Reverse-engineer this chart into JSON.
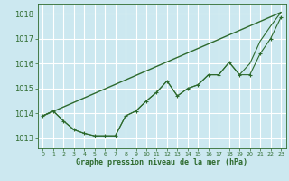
{
  "background_color": "#cce8f0",
  "grid_color": "#ffffff",
  "line_color": "#2d6a2d",
  "text_color": "#2d6a2d",
  "xlabel": "Graphe pression niveau de la mer (hPa)",
  "x_ticks": [
    0,
    1,
    2,
    3,
    4,
    5,
    6,
    7,
    8,
    9,
    10,
    11,
    12,
    13,
    14,
    15,
    16,
    17,
    18,
    19,
    20,
    21,
    22,
    23
  ],
  "ylim": [
    1012.6,
    1018.4
  ],
  "yticks": [
    1013,
    1014,
    1015,
    1016,
    1017,
    1018
  ],
  "xlim": [
    -0.5,
    23.5
  ],
  "series_marker": {
    "x": [
      0,
      1,
      2,
      3,
      4,
      5,
      6,
      7,
      8,
      9,
      10,
      11,
      12,
      13,
      14,
      15,
      16,
      17,
      18,
      19,
      20,
      21,
      22,
      23
    ],
    "y": [
      1013.9,
      1014.1,
      1013.7,
      1013.35,
      1013.2,
      1013.1,
      1013.1,
      1013.1,
      1013.9,
      1014.1,
      1014.5,
      1014.85,
      1015.3,
      1014.7,
      1015.0,
      1015.15,
      1015.55,
      1015.55,
      1016.05,
      1015.55,
      1015.55,
      1016.4,
      1017.0,
      1017.85
    ]
  },
  "series_line": {
    "x": [
      0,
      1,
      2,
      3,
      4,
      5,
      6,
      7,
      8,
      9,
      10,
      11,
      12,
      13,
      14,
      15,
      16,
      17,
      18,
      19,
      20,
      21,
      22,
      23
    ],
    "y": [
      1013.9,
      1014.1,
      1013.7,
      1013.35,
      1013.2,
      1013.1,
      1013.1,
      1013.1,
      1013.9,
      1014.1,
      1014.5,
      1014.85,
      1015.3,
      1014.7,
      1015.0,
      1015.15,
      1015.55,
      1015.55,
      1016.05,
      1015.55,
      1016.0,
      1016.9,
      1017.5,
      1018.05
    ]
  },
  "series_smooth": {
    "x": [
      0,
      23
    ],
    "y": [
      1013.9,
      1018.05
    ]
  }
}
